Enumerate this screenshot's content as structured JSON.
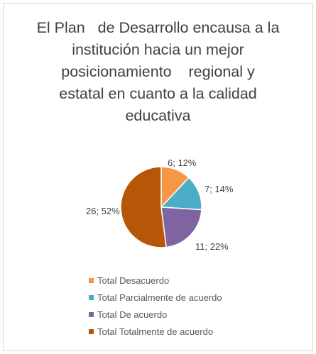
{
  "chart_data": {
    "type": "pie",
    "title": "El Plan   de Desarrollo encausa a la\ninstitución hacia un mejor\nposicionamiento    regional y\nestatal en cuanto a la calidad\neducativa",
    "categories": [
      "Total Desacuerdo",
      "Total Parcialmente de acuerdo",
      "Total De acuerdo",
      "Total Totalmente de acuerdo"
    ],
    "values": [
      6,
      7,
      11,
      26
    ],
    "data_labels": [
      "6; 12%",
      "7; 14%",
      "11; 22%",
      "26; 52%"
    ],
    "colors": [
      "#f79646",
      "#4bacc6",
      "#8064a2",
      "#b65708"
    ],
    "legend_position": "bottom"
  }
}
